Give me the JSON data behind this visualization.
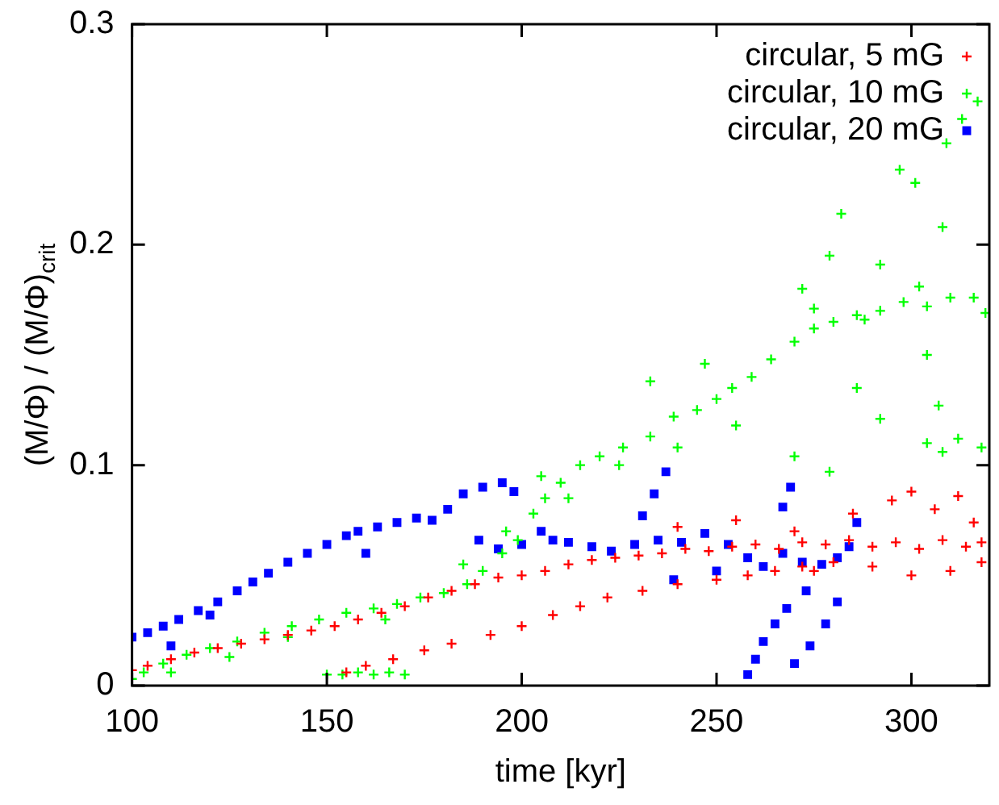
{
  "chart_data": {
    "type": "scatter",
    "xlabel": "time [kyr]",
    "ylabel": "(M/Φ) / (M/Φ)$_{crit}$",
    "xlim": [
      100,
      320
    ],
    "ylim": [
      0,
      0.3
    ],
    "xticks": [
      100,
      150,
      200,
      250,
      300
    ],
    "yticks": [
      0,
      0.1,
      0.2,
      0.3
    ],
    "grid": false,
    "legend": "top right",
    "series": [
      {
        "name": "circular, 5 mG",
        "color": "#ff0000",
        "marker": "cross",
        "x": [
          100,
          104,
          110,
          116,
          122,
          128,
          134,
          140,
          146,
          152,
          158,
          164,
          170,
          176,
          182,
          188,
          194,
          200,
          206,
          212,
          218,
          224,
          230,
          236,
          242,
          248,
          254,
          260,
          266,
          272,
          278,
          284,
          290,
          296,
          302,
          308,
          314,
          318,
          240,
          255,
          270,
          285,
          295,
          300,
          306,
          312,
          316,
          300,
          310,
          318,
          290,
          275,
          155,
          160,
          167,
          175,
          182,
          192,
          200,
          208,
          215,
          222,
          231,
          240,
          250,
          258,
          265,
          272,
          280
        ],
        "values": [
          0.007,
          0.009,
          0.012,
          0.015,
          0.017,
          0.019,
          0.021,
          0.023,
          0.025,
          0.027,
          0.03,
          0.033,
          0.036,
          0.04,
          0.043,
          0.046,
          0.049,
          0.05,
          0.052,
          0.055,
          0.057,
          0.058,
          0.059,
          0.06,
          0.062,
          0.061,
          0.063,
          0.064,
          0.062,
          0.065,
          0.064,
          0.066,
          0.063,
          0.065,
          0.062,
          0.066,
          0.063,
          0.065,
          0.072,
          0.075,
          0.07,
          0.078,
          0.084,
          0.088,
          0.08,
          0.086,
          0.074,
          0.05,
          0.052,
          0.056,
          0.054,
          0.052,
          0.006,
          0.009,
          0.012,
          0.016,
          0.019,
          0.023,
          0.027,
          0.032,
          0.036,
          0.04,
          0.043,
          0.046,
          0.048,
          0.05,
          0.052,
          0.054,
          0.056
        ]
      },
      {
        "name": "circular, 10 mG",
        "color": "#00ff00",
        "marker": "cross",
        "x": [
          100,
          103,
          108,
          114,
          120,
          127,
          134,
          141,
          148,
          155,
          162,
          168,
          174,
          180,
          186,
          190,
          195,
          199,
          203,
          206,
          210,
          215,
          220,
          226,
          233,
          239,
          245,
          250,
          254,
          259,
          264,
          270,
          275,
          280,
          286,
          292,
          298,
          304,
          310,
          316,
          319,
          110,
          125,
          140,
          165,
          185,
          196,
          205,
          212,
          225,
          240,
          255,
          270,
          279,
          286,
          292,
          304,
          308,
          312,
          318,
          307,
          304,
          233,
          247,
          272,
          275,
          279,
          282,
          288,
          292,
          297,
          301,
          302,
          308,
          309,
          313,
          317,
          150,
          154,
          158,
          162,
          166,
          170
        ],
        "values": [
          0.003,
          0.006,
          0.01,
          0.014,
          0.017,
          0.02,
          0.024,
          0.027,
          0.03,
          0.033,
          0.035,
          0.037,
          0.04,
          0.042,
          0.046,
          0.052,
          0.06,
          0.066,
          0.078,
          0.085,
          0.092,
          0.1,
          0.104,
          0.108,
          0.113,
          0.122,
          0.125,
          0.13,
          0.135,
          0.14,
          0.148,
          0.156,
          0.162,
          0.165,
          0.168,
          0.17,
          0.174,
          0.172,
          0.176,
          0.176,
          0.169,
          0.006,
          0.013,
          0.022,
          0.03,
          0.055,
          0.07,
          0.095,
          0.085,
          0.1,
          0.108,
          0.118,
          0.104,
          0.097,
          0.135,
          0.121,
          0.11,
          0.106,
          0.112,
          0.108,
          0.127,
          0.15,
          0.138,
          0.146,
          0.18,
          0.171,
          0.195,
          0.214,
          0.166,
          0.191,
          0.234,
          0.228,
          0.181,
          0.208,
          0.246,
          0.257,
          0.265,
          0.005,
          0.005,
          0.006,
          0.005,
          0.006,
          0.005
        ]
      },
      {
        "name": "circular, 20 mG",
        "color": "#0000ff",
        "marker": "square",
        "x": [
          100,
          104,
          108,
          112,
          117,
          122,
          127,
          131,
          135,
          140,
          145,
          150,
          155,
          158,
          163,
          168,
          173,
          177,
          181,
          185,
          190,
          195,
          198,
          189,
          194,
          200,
          205,
          208,
          212,
          218,
          223,
          229,
          235,
          241,
          247,
          253,
          258,
          262,
          267,
          272,
          277,
          281,
          284,
          286,
          231,
          234,
          237,
          267,
          269,
          239,
          250,
          273,
          258,
          260,
          262,
          265,
          268,
          270,
          274,
          278,
          281,
          160,
          120,
          110
        ],
        "values": [
          0.022,
          0.024,
          0.027,
          0.03,
          0.034,
          0.038,
          0.043,
          0.047,
          0.051,
          0.056,
          0.06,
          0.064,
          0.068,
          0.07,
          0.072,
          0.074,
          0.076,
          0.075,
          0.08,
          0.087,
          0.09,
          0.092,
          0.088,
          0.066,
          0.062,
          0.064,
          0.07,
          0.066,
          0.065,
          0.063,
          0.061,
          0.064,
          0.066,
          0.065,
          0.069,
          0.064,
          0.058,
          0.054,
          0.06,
          0.056,
          0.055,
          0.058,
          0.063,
          0.074,
          0.077,
          0.087,
          0.097,
          0.081,
          0.09,
          0.048,
          0.052,
          0.043,
          0.005,
          0.012,
          0.02,
          0.028,
          0.035,
          0.01,
          0.018,
          0.028,
          0.038,
          0.06,
          0.032,
          0.018
        ]
      }
    ]
  }
}
